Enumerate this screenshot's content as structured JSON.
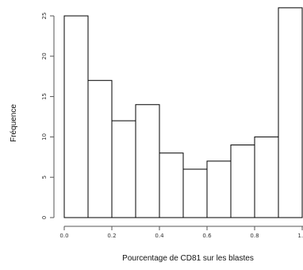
{
  "chart_data": {
    "type": "bar",
    "subtype": "histogram",
    "title": "",
    "xlabel": "Pourcentage de CD81 sur les blastes",
    "ylabel": "Fréquence",
    "bins": [
      {
        "x0": 0.0,
        "x1": 0.1,
        "value": 25
      },
      {
        "x0": 0.1,
        "x1": 0.2,
        "value": 17
      },
      {
        "x0": 0.2,
        "x1": 0.3,
        "value": 12
      },
      {
        "x0": 0.3,
        "x1": 0.4,
        "value": 14
      },
      {
        "x0": 0.4,
        "x1": 0.5,
        "value": 8
      },
      {
        "x0": 0.5,
        "x1": 0.6,
        "value": 6
      },
      {
        "x0": 0.6,
        "x1": 0.7,
        "value": 7
      },
      {
        "x0": 0.7,
        "x1": 0.8,
        "value": 9
      },
      {
        "x0": 0.8,
        "x1": 0.9,
        "value": 10
      },
      {
        "x0": 0.9,
        "x1": 1.0,
        "value": 26
      }
    ],
    "xlim": [
      0.0,
      1.0
    ],
    "ylim": [
      0,
      25
    ],
    "x_ticks": [
      "0.0",
      "0.2",
      "0.4",
      "0.6",
      "0.8",
      "1.0"
    ],
    "y_ticks": [
      "0",
      "5",
      "10",
      "15",
      "20",
      "25"
    ],
    "grid": false,
    "legend": "none",
    "colors": {
      "bar_fill": "#ffffff",
      "bar_stroke": "#000000",
      "axis": "#555555"
    }
  }
}
